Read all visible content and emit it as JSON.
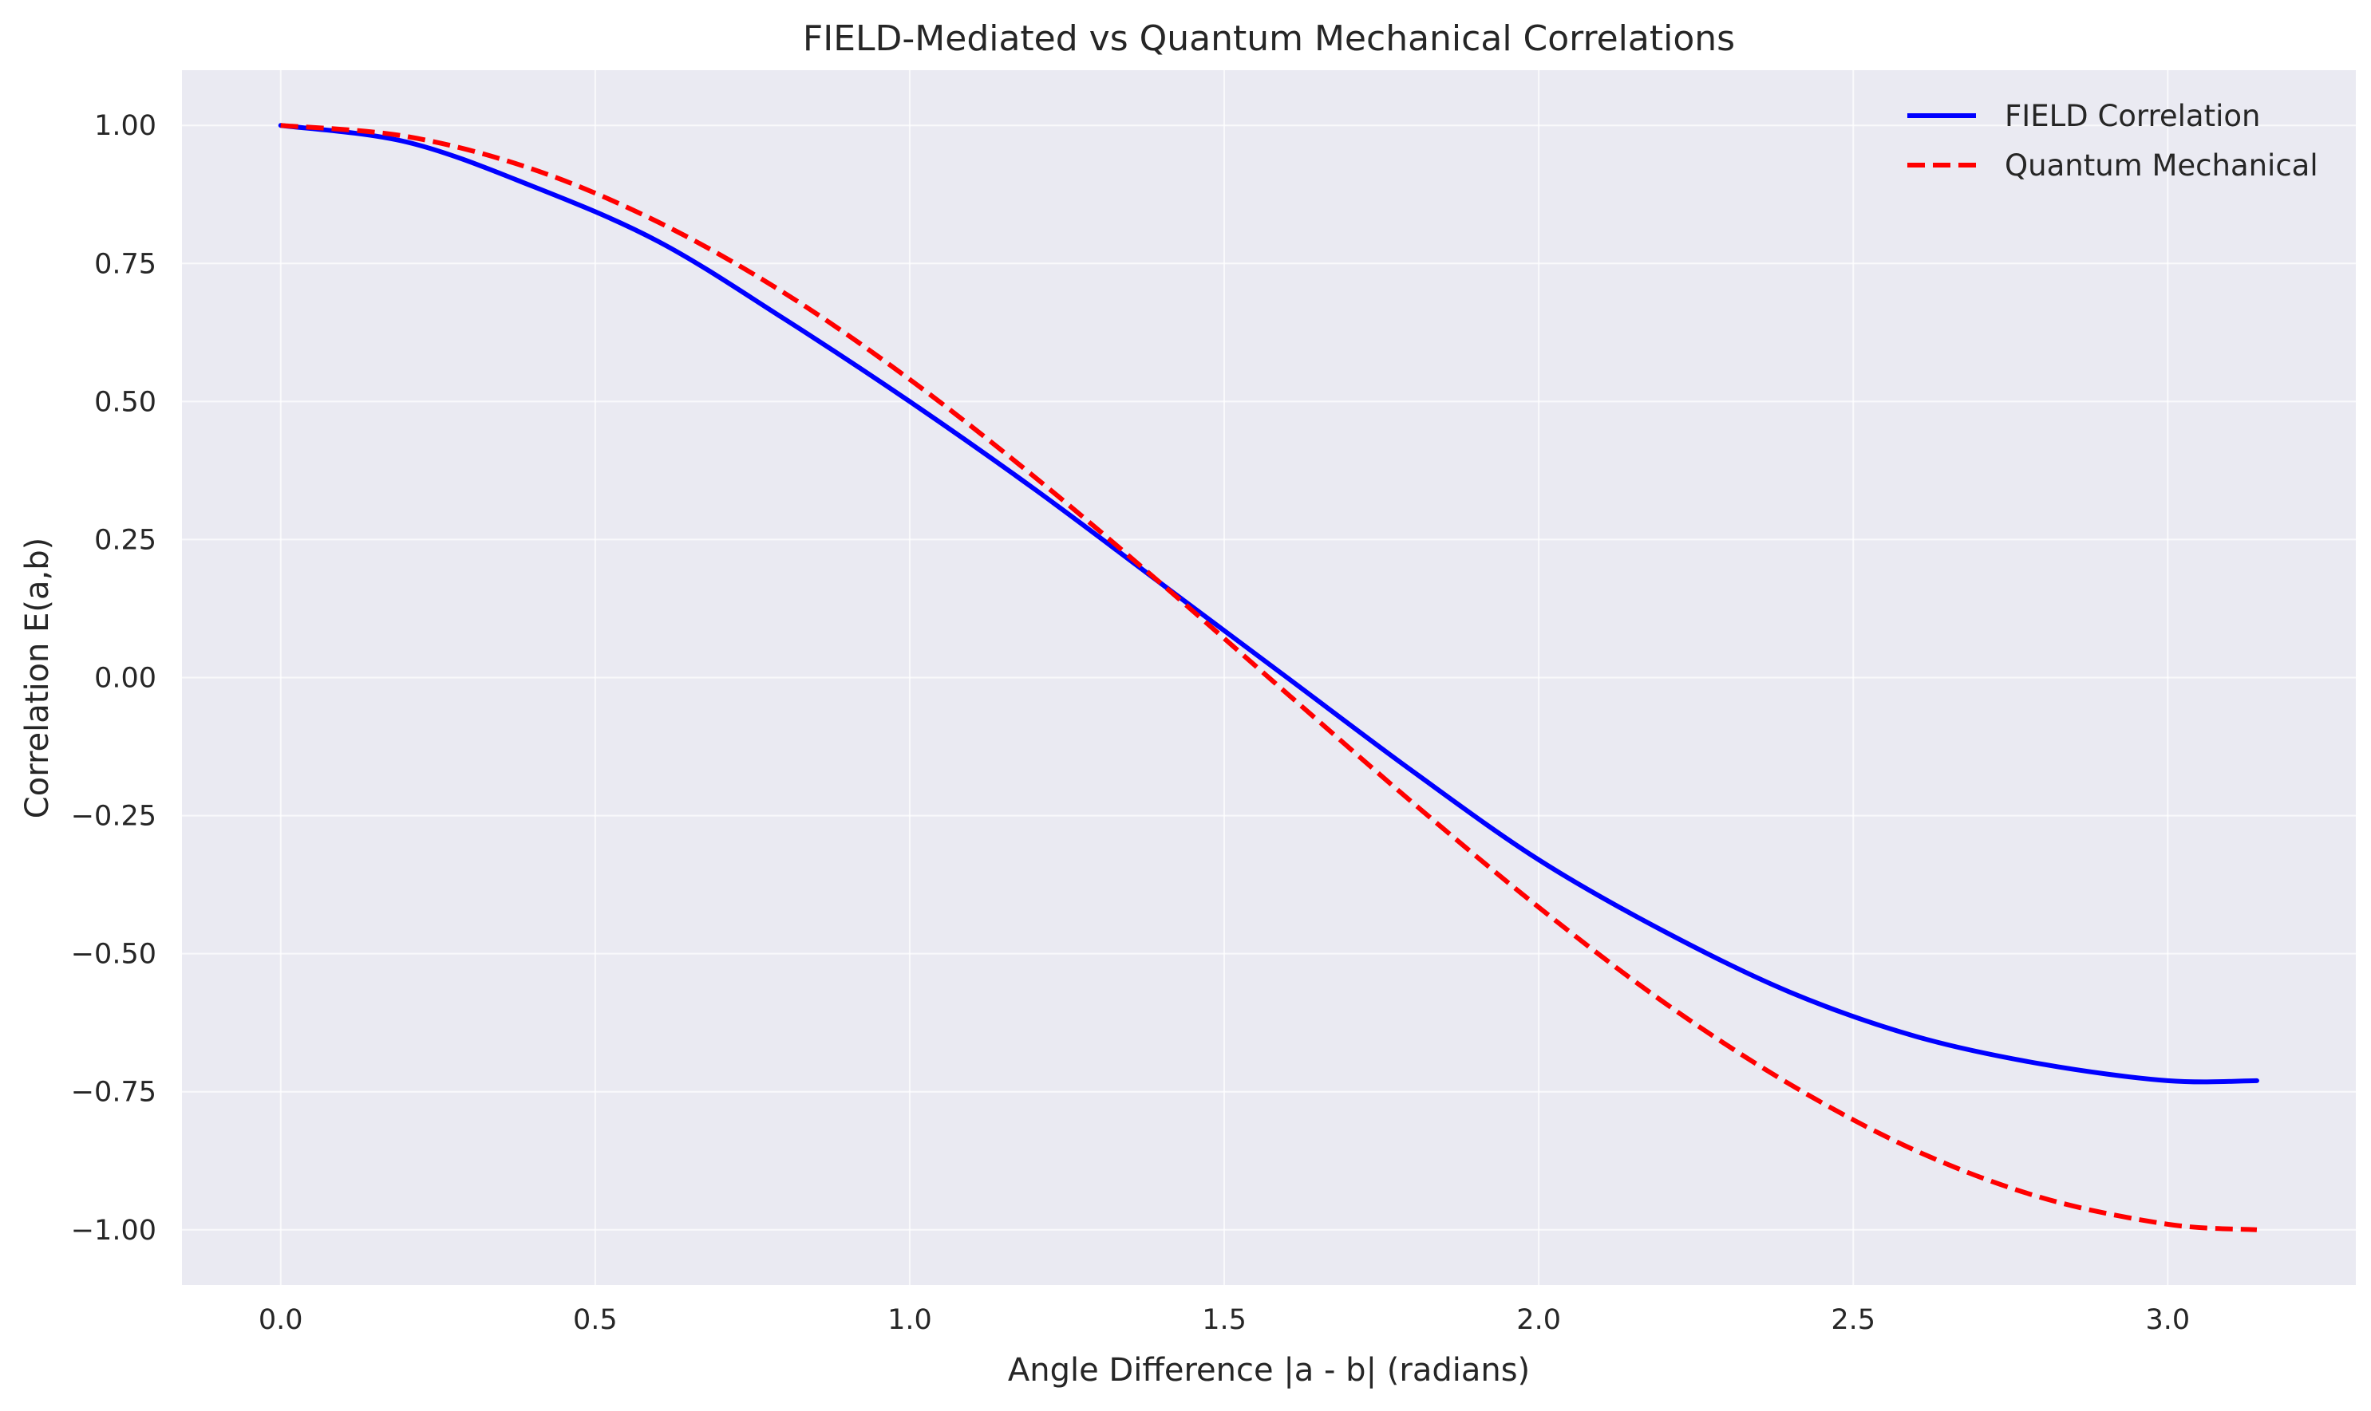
{
  "chart_data": {
    "type": "line",
    "title": "FIELD-Mediated vs Quantum Mechanical Correlations",
    "xlabel": "Angle Difference |a - b| (radians)",
    "ylabel": "Correlation E(a,b)",
    "xlim": [
      -0.157,
      3.299
    ],
    "ylim": [
      -1.1,
      1.1
    ],
    "xticks": [
      0.0,
      0.5,
      1.0,
      1.5,
      2.0,
      2.5,
      3.0
    ],
    "xtick_labels": [
      "0.0",
      "0.5",
      "1.0",
      "1.5",
      "2.0",
      "2.5",
      "3.0"
    ],
    "yticks": [
      1.0,
      0.75,
      0.5,
      0.25,
      0.0,
      -0.25,
      -0.5,
      -0.75,
      -1.0
    ],
    "ytick_labels": [
      "1.00",
      "0.75",
      "0.50",
      "0.25",
      "0.00",
      "−0.25",
      "−0.50",
      "−0.75",
      "−1.00"
    ],
    "grid": true,
    "legend_position": "top-right",
    "series": [
      {
        "name": "FIELD Correlation",
        "color": "#0000ff",
        "style": "solid",
        "x": [
          0.0,
          0.2,
          0.4,
          0.6,
          0.8,
          1.0,
          1.2,
          1.4,
          1.6,
          1.8,
          2.0,
          2.2,
          2.4,
          2.6,
          2.8,
          3.0,
          3.1416
        ],
        "y": [
          1.0,
          0.97,
          0.89,
          0.79,
          0.65,
          0.5,
          0.34,
          0.17,
          0.0,
          -0.17,
          -0.33,
          -0.46,
          -0.57,
          -0.65,
          -0.7,
          -0.73,
          -0.73
        ]
      },
      {
        "name": "Quantum Mechanical",
        "color": "#ff0000",
        "style": "dashed",
        "x": [
          0.0,
          0.2,
          0.4,
          0.6,
          0.8,
          1.0,
          1.2,
          1.4,
          1.6,
          1.8,
          2.0,
          2.2,
          2.4,
          2.6,
          2.8,
          3.0,
          3.1416
        ],
        "y": [
          1.0,
          0.98,
          0.921,
          0.825,
          0.697,
          0.54,
          0.362,
          0.17,
          -0.029,
          -0.227,
          -0.416,
          -0.589,
          -0.737,
          -0.857,
          -0.942,
          -0.99,
          -1.0
        ]
      }
    ]
  }
}
